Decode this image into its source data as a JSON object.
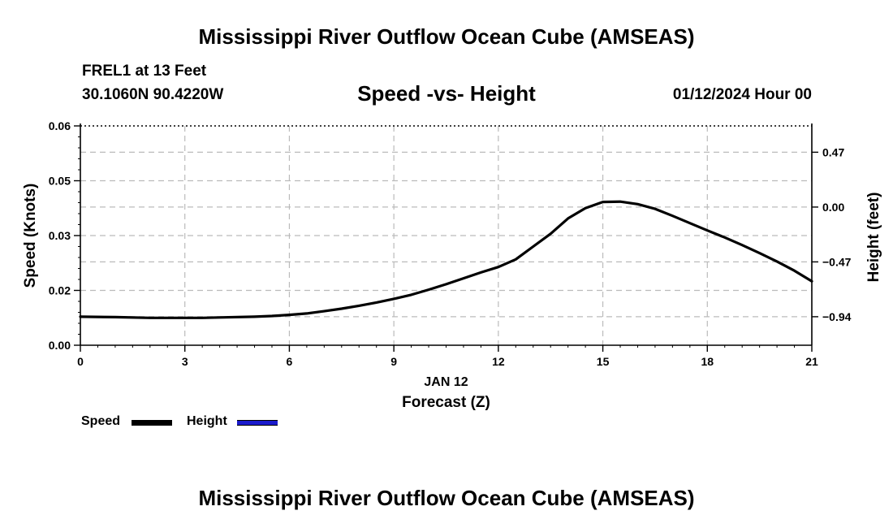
{
  "header": {
    "main_title": "Mississippi River Outflow Ocean Cube (AMSEAS)",
    "station": "FREL1 at 13 Feet",
    "coords": "30.1060N  90.4220W",
    "chart_title": "Speed -vs- Height",
    "date": "01/12/2024 Hour 00"
  },
  "footer": {
    "main_title": "Mississippi River Outflow Ocean Cube (AMSEAS)"
  },
  "legend": {
    "speed_label": "Speed",
    "height_label": "Height"
  },
  "colors": {
    "speed": "#000000",
    "height": "#1a1acc",
    "grid": "#bbbbbb"
  },
  "chart_data": {
    "type": "line",
    "title": "Speed -vs- Height",
    "xlabel": "Forecast (Z)",
    "x_date_label": "JAN 12",
    "ylabel": "Speed (Knots)",
    "y2label": "Height (feet)",
    "xlim": [
      0,
      21
    ],
    "ylim": [
      0,
      0.06
    ],
    "x_ticks": [
      0,
      3,
      6,
      9,
      12,
      15,
      18,
      21
    ],
    "x_tick_labels": [
      "0",
      "3",
      "6",
      "9",
      "12",
      "15",
      "18",
      "21"
    ],
    "y_ticks": [
      0,
      0.015,
      0.03,
      0.045,
      0.06
    ],
    "y_tick_labels": [
      "0.00",
      "0.02",
      "0.03",
      "0.05",
      "0.06"
    ],
    "y2_ticks_in_y_units": [
      0.0078,
      0.0228,
      0.0378,
      0.0528
    ],
    "y2_tick_labels": [
      "−0.94",
      "−0.47",
      "0.00",
      "0.47"
    ],
    "grid": true,
    "series": [
      {
        "name": "Speed",
        "x": [
          0,
          1,
          2,
          3,
          3.5,
          4,
          5,
          5.5,
          6,
          6.5,
          7,
          7.5,
          8,
          8.5,
          9,
          9.5,
          10,
          10.5,
          11,
          11.5,
          12,
          12.5,
          13,
          13.5,
          14,
          14.5,
          15,
          15.5,
          16,
          16.5,
          17,
          17.5,
          18,
          18.5,
          19,
          19.5,
          20,
          20.5,
          21
        ],
        "values": [
          0.0078,
          0.0077,
          0.0075,
          0.0075,
          0.0075,
          0.0076,
          0.0078,
          0.008,
          0.0083,
          0.0087,
          0.0093,
          0.01,
          0.0108,
          0.0117,
          0.0127,
          0.0138,
          0.0152,
          0.0167,
          0.0183,
          0.0199,
          0.0214,
          0.0235,
          0.027,
          0.0305,
          0.0347,
          0.0375,
          0.0392,
          0.0393,
          0.0386,
          0.0373,
          0.0354,
          0.0334,
          0.0314,
          0.0295,
          0.0274,
          0.0252,
          0.0229,
          0.0204,
          0.0175
        ]
      }
    ]
  }
}
